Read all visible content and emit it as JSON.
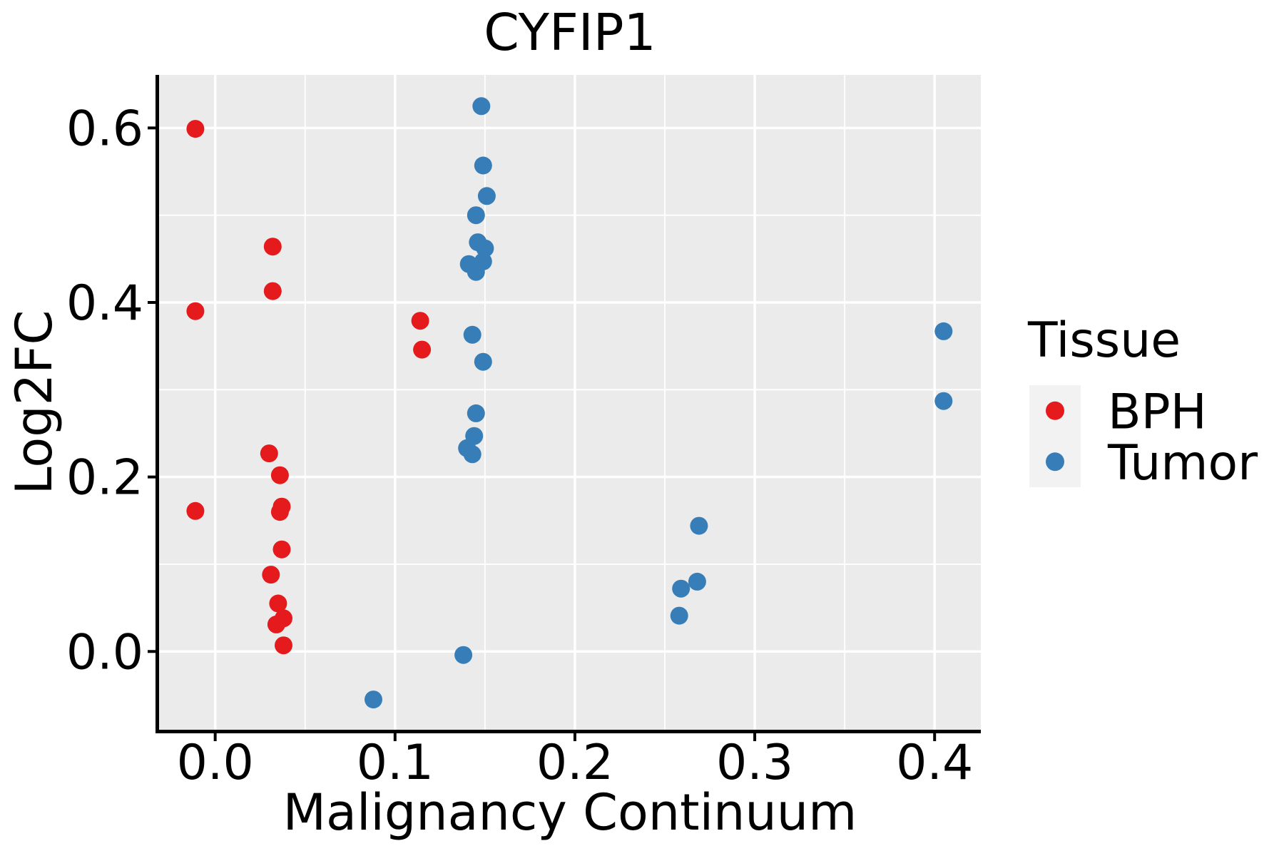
{
  "title": "CYFIP1",
  "axes": {
    "x_label": "Malignancy Continuum",
    "y_label": "Log2FC",
    "x_tick_labels": [
      "0.0",
      "0.1",
      "0.2",
      "0.3",
      "0.4"
    ],
    "y_tick_labels": [
      "0.0",
      "0.2",
      "0.4",
      "0.6"
    ]
  },
  "legend": {
    "title": "Tissue",
    "items": [
      {
        "label": "BPH",
        "color": "#e41a1c"
      },
      {
        "label": "Tumor",
        "color": "#377eb8"
      }
    ]
  },
  "colors": {
    "panel_background": "#ebebeb",
    "grid": "#ffffff",
    "axis": "#000000",
    "text": "#000000",
    "legend_key_background": "#f2f2f2",
    "bph": "#e41a1c",
    "tumor": "#377eb8"
  },
  "chart_data": {
    "type": "scatter",
    "title": "CYFIP1",
    "xlabel": "Malignancy Continuum",
    "ylabel": "Log2FC",
    "xlim": [
      -0.0312,
      0.4257
    ],
    "ylim": [
      -0.0897,
      0.6608
    ],
    "x_ticks": [
      0.0,
      0.1,
      0.2,
      0.3,
      0.4
    ],
    "y_ticks": [
      0.0,
      0.2,
      0.4,
      0.6
    ],
    "x_minor_ticks": [
      0.05,
      0.15,
      0.25,
      0.35
    ],
    "y_minor_ticks": [
      0.1,
      0.3,
      0.5
    ],
    "grid": true,
    "legend_position": "right",
    "marker_radius_px": 12.5,
    "series": [
      {
        "name": "BPH",
        "color": "#e41a1c",
        "points": [
          [
            -0.011,
            0.599
          ],
          [
            -0.011,
            0.39
          ],
          [
            -0.011,
            0.161
          ],
          [
            0.032,
            0.464
          ],
          [
            0.032,
            0.413
          ],
          [
            0.03,
            0.227
          ],
          [
            0.036,
            0.202
          ],
          [
            0.037,
            0.166
          ],
          [
            0.036,
            0.16
          ],
          [
            0.037,
            0.117
          ],
          [
            0.031,
            0.088
          ],
          [
            0.035,
            0.055
          ],
          [
            0.038,
            0.038
          ],
          [
            0.034,
            0.031
          ],
          [
            0.038,
            0.007
          ],
          [
            0.114,
            0.379
          ],
          [
            0.115,
            0.346
          ]
        ]
      },
      {
        "name": "Tumor",
        "color": "#377eb8",
        "points": [
          [
            0.148,
            0.625
          ],
          [
            0.149,
            0.557
          ],
          [
            0.151,
            0.522
          ],
          [
            0.145,
            0.5
          ],
          [
            0.146,
            0.469
          ],
          [
            0.15,
            0.462
          ],
          [
            0.149,
            0.447
          ],
          [
            0.141,
            0.444
          ],
          [
            0.145,
            0.435
          ],
          [
            0.143,
            0.363
          ],
          [
            0.149,
            0.332
          ],
          [
            0.145,
            0.273
          ],
          [
            0.144,
            0.247
          ],
          [
            0.14,
            0.233
          ],
          [
            0.143,
            0.226
          ],
          [
            0.138,
            -0.004
          ],
          [
            0.088,
            -0.055
          ],
          [
            0.258,
            0.041
          ],
          [
            0.259,
            0.072
          ],
          [
            0.268,
            0.08
          ],
          [
            0.269,
            0.144
          ],
          [
            0.405,
            0.367
          ],
          [
            0.405,
            0.287
          ]
        ]
      }
    ]
  }
}
